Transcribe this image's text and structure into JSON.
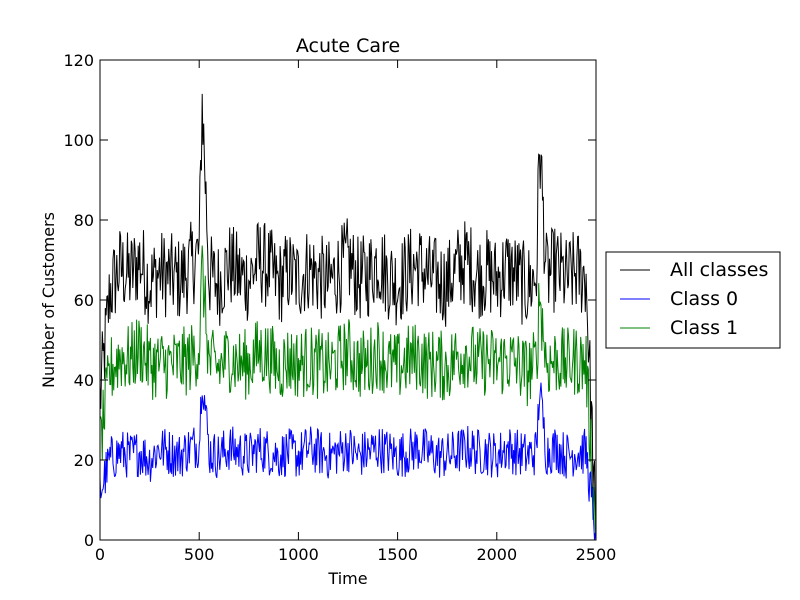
{
  "chart_data": {
    "type": "line",
    "title": "Acute Care",
    "xlabel": "Time",
    "ylabel": "Number of Customers",
    "xlim": [
      0,
      2500
    ],
    "ylim": [
      0,
      120
    ],
    "xticks": [
      0,
      500,
      1000,
      1500,
      2000,
      2500
    ],
    "yticks": [
      0,
      20,
      40,
      60,
      80,
      100,
      120
    ],
    "xtick_labels": [
      "0",
      "500",
      "1000",
      "1500",
      "2000",
      "2500"
    ],
    "ytick_labels": [
      "0",
      "20",
      "40",
      "60",
      "80",
      "100",
      "120"
    ],
    "grid": false,
    "legend_position": "right, outside plot, vertically centered",
    "x": [
      0,
      50,
      100,
      150,
      200,
      250,
      300,
      350,
      400,
      450,
      500,
      515,
      550,
      600,
      650,
      700,
      750,
      800,
      850,
      900,
      950,
      1000,
      1050,
      1100,
      1150,
      1200,
      1250,
      1300,
      1350,
      1400,
      1450,
      1500,
      1550,
      1600,
      1650,
      1700,
      1750,
      1800,
      1850,
      1900,
      1950,
      2000,
      2050,
      2100,
      2150,
      2200,
      2215,
      2250,
      2300,
      2350,
      2400,
      2450,
      2500
    ],
    "series": [
      {
        "name": "All classes",
        "color": "#000000",
        "values": [
          35,
          62,
          68,
          66,
          70,
          64,
          67,
          66,
          65,
          68,
          72,
          110,
          66,
          64,
          69,
          66,
          65,
          70,
          68,
          64,
          67,
          65,
          68,
          66,
          64,
          67,
          70,
          65,
          66,
          70,
          66,
          64,
          67,
          69,
          66,
          65,
          64,
          68,
          70,
          66,
          67,
          65,
          68,
          66,
          63,
          66,
          100,
          66,
          68,
          65,
          67,
          66,
          0
        ]
      },
      {
        "name": "Class 0",
        "color": "#0000ff",
        "values": [
          12,
          20,
          22,
          21,
          22,
          20,
          23,
          22,
          21,
          23,
          24,
          42,
          22,
          21,
          23,
          22,
          21,
          23,
          22,
          21,
          22,
          21,
          23,
          22,
          21,
          22,
          23,
          21,
          22,
          23,
          22,
          21,
          22,
          23,
          22,
          21,
          21,
          22,
          23,
          22,
          22,
          21,
          23,
          22,
          21,
          22,
          38,
          22,
          23,
          21,
          22,
          22,
          0
        ]
      },
      {
        "name": "Class 1",
        "color": "#008000",
        "values": [
          23,
          42,
          46,
          45,
          48,
          44,
          44,
          44,
          44,
          45,
          48,
          68,
          44,
          43,
          46,
          44,
          44,
          47,
          46,
          43,
          45,
          44,
          45,
          44,
          43,
          45,
          47,
          44,
          44,
          47,
          44,
          43,
          45,
          46,
          44,
          44,
          43,
          46,
          47,
          44,
          45,
          44,
          45,
          44,
          42,
          44,
          62,
          44,
          45,
          44,
          45,
          44,
          0
        ]
      }
    ]
  }
}
